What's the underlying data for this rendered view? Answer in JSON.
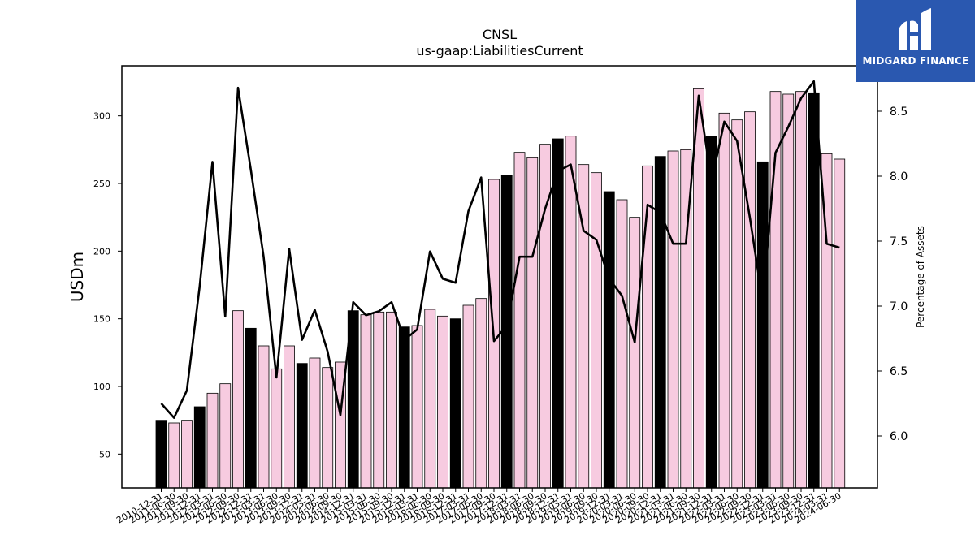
{
  "chart_data": {
    "type": "bar",
    "title": "CNSL",
    "subtitle": "us-gaap:LiabilitiesCurrent",
    "ylabel": "USDm",
    "y2label": "Percentage of Assets",
    "ylim": [
      25,
      337
    ],
    "y2lim": [
      5.6,
      8.85
    ],
    "yticks": [
      50,
      100,
      150,
      200,
      250,
      300
    ],
    "y2ticks": [
      6.0,
      6.5,
      7.0,
      7.5,
      8.0,
      8.5
    ],
    "categories": [
      "2010-12-31",
      "2011-06-30",
      "2011-09-30",
      "2011-12-31",
      "2012-03-31",
      "2012-06-30",
      "2012-09-30",
      "2012-12-31",
      "2013-03-31",
      "2013-06-30",
      "2013-09-30",
      "2013-12-31",
      "2014-03-31",
      "2014-06-30",
      "2014-09-30",
      "2014-12-31",
      "2015-03-31",
      "2015-06-30",
      "2015-09-30",
      "2015-12-31",
      "2016-03-31",
      "2016-06-30",
      "2016-09-30",
      "2016-12-31",
      "2017-03-31",
      "2017-06-30",
      "2017-09-30",
      "2017-12-31",
      "2018-03-31",
      "2018-06-30",
      "2018-09-30",
      "2018-12-31",
      "2019-03-31",
      "2019-06-30",
      "2019-09-30",
      "2019-12-31",
      "2020-03-31",
      "2020-06-30",
      "2020-09-30",
      "2020-12-31",
      "2021-03-31",
      "2021-06-30",
      "2021-09-30",
      "2021-12-31",
      "2022-03-31",
      "2022-06-30",
      "2022-09-30",
      "2022-12-31",
      "2023-03-31",
      "2023-06-30",
      "2023-09-30",
      "2023-12-31",
      "2024-03-31",
      "2024-06-30"
    ],
    "series": [
      {
        "type": "bar",
        "values": [
          75,
          73,
          75,
          85,
          95,
          102,
          156,
          143,
          130,
          113,
          130,
          117,
          121,
          114,
          118,
          156,
          153,
          155,
          155,
          144,
          145,
          157,
          152,
          150,
          160,
          165,
          253,
          256,
          273,
          269,
          279,
          283,
          285,
          264,
          258,
          244,
          238,
          225,
          263,
          270,
          274,
          275,
          320,
          285,
          302,
          297,
          303,
          266,
          318,
          316,
          318,
          317,
          272,
          268
        ],
        "highlight": [
          true,
          false,
          false,
          true,
          false,
          false,
          false,
          true,
          false,
          false,
          false,
          true,
          false,
          false,
          false,
          true,
          false,
          false,
          false,
          true,
          false,
          false,
          false,
          true,
          false,
          false,
          false,
          true,
          false,
          false,
          false,
          true,
          false,
          false,
          false,
          true,
          false,
          false,
          false,
          true,
          false,
          false,
          false,
          true,
          false,
          false,
          false,
          true,
          false,
          false,
          false,
          true,
          false,
          false
        ]
      },
      {
        "type": "line",
        "axis": "right",
        "values": [
          6.25,
          6.14,
          6.35,
          7.15,
          8.11,
          6.92,
          8.68,
          8.05,
          7.38,
          6.45,
          7.44,
          6.74,
          6.97,
          6.65,
          6.16,
          7.03,
          6.93,
          6.96,
          7.03,
          6.74,
          6.82,
          7.42,
          7.21,
          7.18,
          7.73,
          7.99,
          6.73,
          6.85,
          7.38,
          7.38,
          7.75,
          8.04,
          8.09,
          7.58,
          7.51,
          7.21,
          7.08,
          6.72,
          7.78,
          7.72,
          7.48,
          7.48,
          8.62,
          7.96,
          8.42,
          8.27,
          7.68,
          7.03,
          8.18,
          8.38,
          8.6,
          8.73,
          7.48,
          7.45
        ]
      }
    ],
    "colors": {
      "bar": "#f7cbe0",
      "bar_highlight": "#000000",
      "bar_edge": "#000000",
      "line": "#000000"
    }
  },
  "logo": {
    "text": "MIDGARD FINANCE",
    "icon": "midgard-logo-icon",
    "background": "#2a58b0"
  }
}
